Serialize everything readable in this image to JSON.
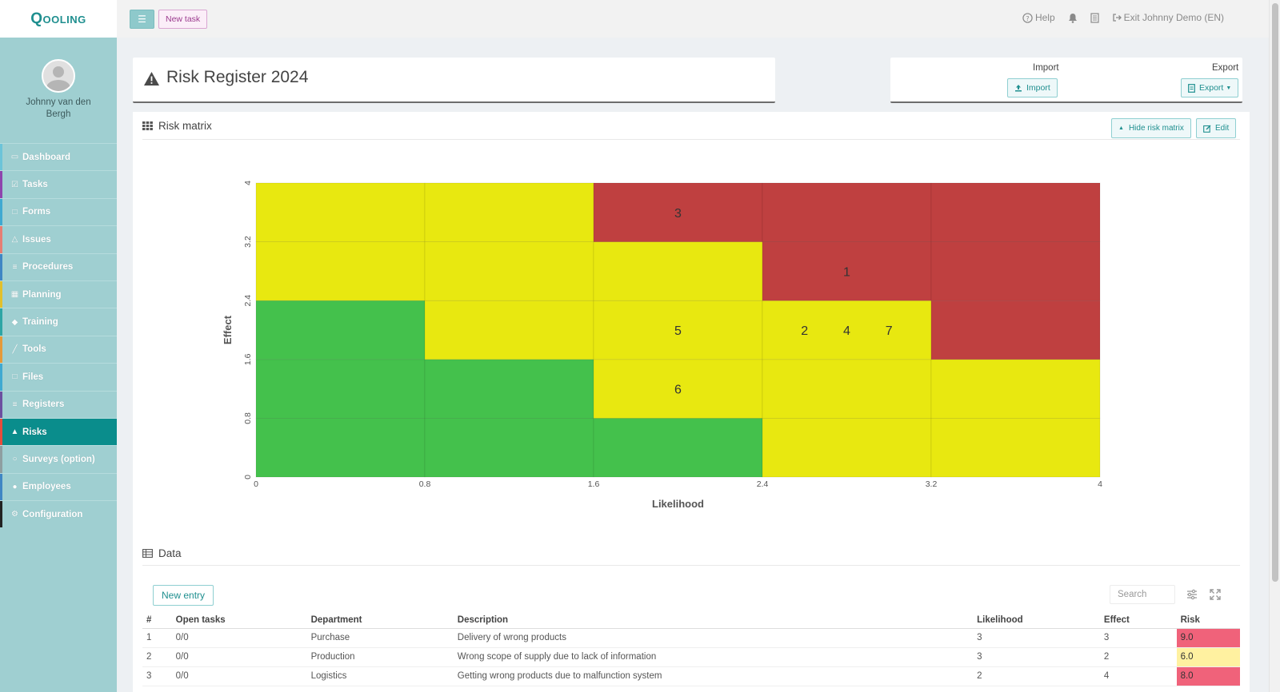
{
  "app": {
    "logo": "Qooling"
  },
  "user": {
    "name": "Johnny van den Bergh"
  },
  "sidebar": {
    "items": [
      {
        "label": "Dashboard",
        "icon": "monitor-icon",
        "accent": "#6cc4d9"
      },
      {
        "label": "Tasks",
        "icon": "check-square-icon",
        "accent": "#8e44ad"
      },
      {
        "label": "Forms",
        "icon": "file-icon",
        "accent": "#3fa9d1"
      },
      {
        "label": "Issues",
        "icon": "bell-icon",
        "accent": "#e67e73"
      },
      {
        "label": "Procedures",
        "icon": "list-icon",
        "accent": "#3f86c4"
      },
      {
        "label": "Planning",
        "icon": "calendar-icon",
        "accent": "#e2c02b"
      },
      {
        "label": "Training",
        "icon": "graduation-cap-icon",
        "accent": "#2ea5a5"
      },
      {
        "label": "Tools",
        "icon": "wrench-icon",
        "accent": "#e59a3a"
      },
      {
        "label": "Files",
        "icon": "file-icon",
        "accent": "#3fa9d1"
      },
      {
        "label": "Registers",
        "icon": "list-icon",
        "accent": "#6c4fa0"
      },
      {
        "label": "Risks",
        "icon": "warning-icon",
        "accent": "#e74c3c",
        "active": true
      },
      {
        "label": "Surveys (option)",
        "icon": "chat-icon",
        "accent": "#8e9ea0"
      },
      {
        "label": "Employees",
        "icon": "users-icon",
        "accent": "#3f86c4"
      },
      {
        "label": "Configuration",
        "icon": "gear-icon",
        "accent": "#222222"
      }
    ]
  },
  "topbar": {
    "new_task": "New task",
    "help": "Help",
    "exit": "Exit Johnny Demo (EN)"
  },
  "page": {
    "title": "Risk Register 2024"
  },
  "import_export": {
    "import_label": "Import",
    "import_button": "Import",
    "export_label": "Export",
    "export_button": "Export"
  },
  "matrix": {
    "heading": "Risk matrix",
    "hide_button": "Hide risk matrix",
    "edit_button": "Edit"
  },
  "chart_data": {
    "type": "heatmap",
    "xlabel": "Likelihood",
    "ylabel": "Effect",
    "xlim": [
      0,
      4
    ],
    "ylim": [
      0,
      4
    ],
    "x_ticks": [
      "0",
      "0.8",
      "1.6",
      "2.4",
      "3.2",
      "4"
    ],
    "y_ticks": [
      "0",
      "0.8",
      "1.6",
      "2.4",
      "3.2",
      "4"
    ],
    "bin_size": 0.8,
    "colors": {
      "green": "#44c14c",
      "yellow": "#e8e810",
      "red": "#bf4040"
    },
    "cells": [
      [
        "green",
        "green",
        "green",
        "yellow",
        "yellow"
      ],
      [
        "green",
        "green",
        "yellow",
        "yellow",
        "yellow"
      ],
      [
        "green",
        "yellow",
        "yellow",
        "yellow",
        "red"
      ],
      [
        "yellow",
        "yellow",
        "yellow",
        "red",
        "red"
      ],
      [
        "yellow",
        "yellow",
        "red",
        "red",
        "red"
      ]
    ],
    "cells_note_order": "rows from effect 0-0.8 (bottom) to 3.2-4 (top); columns from likelihood 0-0.8 to 3.2-4",
    "markers": [
      {
        "label": "3",
        "x": 2.0,
        "y": 3.6
      },
      {
        "label": "1",
        "x": 2.8,
        "y": 2.8
      },
      {
        "label": "5",
        "x": 2.0,
        "y": 2.0
      },
      {
        "label": "2",
        "x": 2.6,
        "y": 2.0
      },
      {
        "label": "4",
        "x": 2.8,
        "y": 2.0
      },
      {
        "label": "7",
        "x": 3.0,
        "y": 2.0
      },
      {
        "label": "6",
        "x": 2.0,
        "y": 1.2
      }
    ]
  },
  "data_section": {
    "heading": "Data",
    "new_entry": "New entry",
    "search_placeholder": "Search",
    "columns": [
      "#",
      "Open tasks",
      "Department",
      "Description",
      "Likelihood",
      "Effect",
      "Risk"
    ],
    "rows": [
      {
        "id": "1",
        "open_tasks": "0/0",
        "department": "Purchase",
        "description": "Delivery of wrong products",
        "likelihood": "3",
        "effect": "3",
        "risk": "9.0",
        "risk_color": "#f0627a"
      },
      {
        "id": "2",
        "open_tasks": "0/0",
        "department": "Production",
        "description": "Wrong scope of supply due to lack of information",
        "likelihood": "3",
        "effect": "2",
        "risk": "6.0",
        "risk_color": "#fff1a0"
      },
      {
        "id": "3",
        "open_tasks": "0/0",
        "department": "Logistics",
        "description": "Getting wrong products due to malfunction system",
        "likelihood": "2",
        "effect": "4",
        "risk": "8.0",
        "risk_color": "#f0627a"
      }
    ]
  }
}
